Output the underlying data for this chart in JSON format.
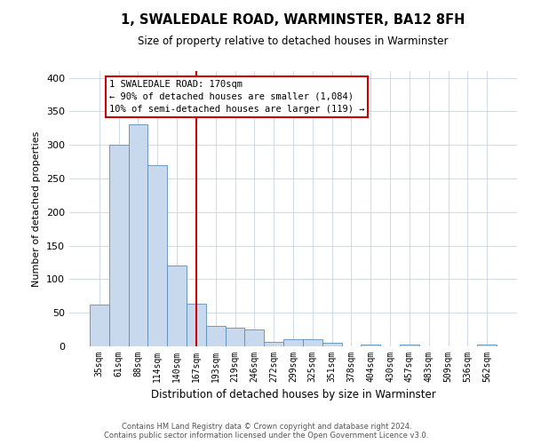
{
  "title": "1, SWALEDALE ROAD, WARMINSTER, BA12 8FH",
  "subtitle": "Size of property relative to detached houses in Warminster",
  "xlabel": "Distribution of detached houses by size in Warminster",
  "ylabel": "Number of detached properties",
  "bar_color": "#c9d9ed",
  "bar_edge_color": "#5b8db8",
  "categories": [
    "35sqm",
    "61sqm",
    "88sqm",
    "114sqm",
    "140sqm",
    "167sqm",
    "193sqm",
    "219sqm",
    "246sqm",
    "272sqm",
    "299sqm",
    "325sqm",
    "351sqm",
    "378sqm",
    "404sqm",
    "430sqm",
    "457sqm",
    "483sqm",
    "509sqm",
    "536sqm",
    "562sqm"
  ],
  "values": [
    62,
    300,
    330,
    270,
    120,
    63,
    30,
    28,
    25,
    7,
    11,
    10,
    5,
    0,
    3,
    0,
    3,
    0,
    0,
    0,
    3
  ],
  "vline_x": 5,
  "vline_label": "1 SWALEDALE ROAD: 170sqm",
  "annotation_line1": "← 90% of detached houses are smaller (1,084)",
  "annotation_line2": "10% of semi-detached houses are larger (119) →",
  "ylim": [
    0,
    410
  ],
  "yticks": [
    0,
    50,
    100,
    150,
    200,
    250,
    300,
    350,
    400
  ],
  "annotation_box_color": "#ffffff",
  "annotation_box_edge_color": "#cc0000",
  "vline_color": "#cc0000",
  "footer_line1": "Contains HM Land Registry data © Crown copyright and database right 2024.",
  "footer_line2": "Contains public sector information licensed under the Open Government Licence v3.0.",
  "background_color": "#ffffff",
  "grid_color": "#c8d4e3"
}
